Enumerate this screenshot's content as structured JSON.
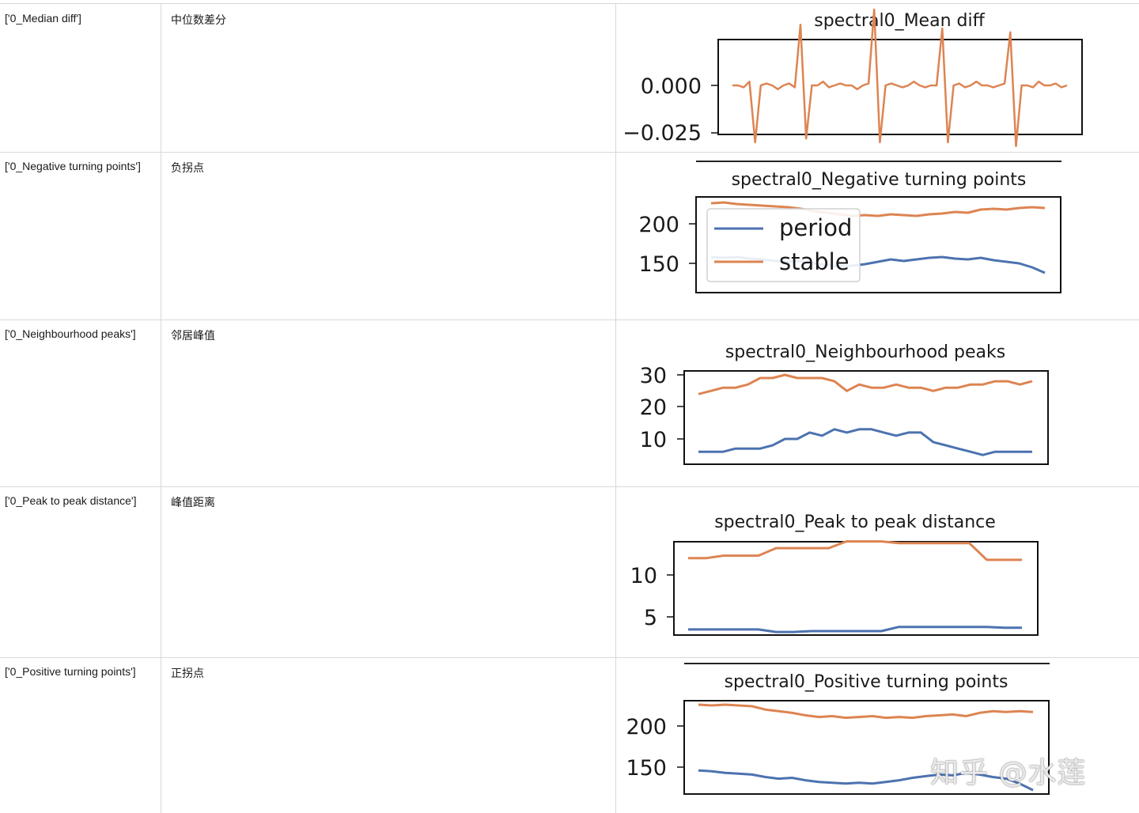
{
  "colors": {
    "period": "#4c72b0",
    "stable": "#dd8452",
    "grid_line": "#d8d8d8"
  },
  "rows": [
    {
      "feature": "['0_Median diff']",
      "chinese": "中位数差分"
    },
    {
      "feature": "['0_Negative turning points']",
      "chinese": "负拐点"
    },
    {
      "feature": "['0_Neighbourhood peaks']",
      "chinese": "邻居峰值"
    },
    {
      "feature": "['0_Peak to peak distance']",
      "chinese": "峰值距离"
    },
    {
      "feature": "['0_Positive turning points']",
      "chinese": "正拐点"
    }
  ],
  "watermark": "知乎 @水莲",
  "chart_data": [
    {
      "type": "line",
      "title": "spectral0_Mean diff",
      "yticks": [
        "0.000",
        "−0.025"
      ],
      "series": [
        {
          "key": "stable",
          "values": [
            0.0,
            0.0,
            -0.001,
            0.002,
            -0.03,
            0.0,
            0.001,
            0.0,
            -0.002,
            0.0,
            0.001,
            -0.001,
            0.032,
            -0.028,
            0.0,
            0.0,
            0.002,
            -0.001,
            0.0,
            0.001,
            0.0,
            0.0,
            -0.002,
            0.0,
            0.001,
            0.04,
            -0.03,
            0.0,
            0.001,
            0.0,
            -0.001,
            0.0,
            0.002,
            0.0,
            -0.001,
            0.0,
            0.0,
            0.03,
            -0.03,
            0.0,
            0.001,
            -0.001,
            0.0,
            0.002,
            0.0,
            0.0,
            -0.001,
            0.0,
            0.001,
            0.028,
            -0.032,
            0.0,
            0.0,
            -0.001,
            0.002,
            0.0,
            0.0,
            0.001,
            -0.001,
            0.0
          ]
        }
      ]
    },
    {
      "type": "line",
      "title": "spectral0_Negative turning points",
      "yticks": [
        "200",
        "150"
      ],
      "legend": [
        "period",
        "stable"
      ],
      "series": [
        {
          "key": "period",
          "values": [
            158,
            157,
            158,
            156,
            155,
            153,
            152,
            153,
            150,
            148,
            146,
            147,
            149,
            152,
            155,
            153,
            155,
            157,
            158,
            156,
            155,
            157,
            154,
            152,
            150,
            145,
            138
          ]
        },
        {
          "key": "stable",
          "values": [
            226,
            227,
            225,
            224,
            223,
            222,
            221,
            219,
            216,
            214,
            212,
            210,
            211,
            210,
            212,
            211,
            210,
            212,
            213,
            215,
            214,
            218,
            219,
            218,
            220,
            221,
            220
          ]
        }
      ]
    },
    {
      "type": "line",
      "title": "spectral0_Neighbourhood peaks",
      "yticks": [
        "30",
        "20",
        "10"
      ],
      "series": [
        {
          "key": "period",
          "values": [
            6,
            6,
            6,
            7,
            7,
            7,
            8,
            10,
            10,
            12,
            11,
            13,
            12,
            13,
            13,
            12,
            11,
            12,
            12,
            9,
            8,
            7,
            6,
            5,
            6,
            6,
            6,
            6
          ]
        },
        {
          "key": "stable",
          "values": [
            24,
            25,
            26,
            26,
            27,
            29,
            29,
            30,
            29,
            29,
            29,
            28,
            25,
            27,
            26,
            26,
            27,
            26,
            26,
            25,
            26,
            26,
            27,
            27,
            28,
            28,
            27,
            28
          ]
        }
      ]
    },
    {
      "type": "line",
      "title": "spectral0_Peak to peak distance",
      "yticks": [
        "10",
        "5"
      ],
      "series": [
        {
          "key": "period",
          "values": [
            3.5,
            3.5,
            3.5,
            3.5,
            3.5,
            3.2,
            3.2,
            3.3,
            3.3,
            3.3,
            3.3,
            3.3,
            3.8,
            3.8,
            3.8,
            3.8,
            3.8,
            3.8,
            3.7,
            3.7
          ]
        },
        {
          "key": "stable",
          "values": [
            12.0,
            12.0,
            12.3,
            12.3,
            12.3,
            13.2,
            13.2,
            13.2,
            13.2,
            14.0,
            14.0,
            14.0,
            13.8,
            13.8,
            13.8,
            13.8,
            13.8,
            11.8,
            11.8,
            11.8
          ]
        }
      ]
    },
    {
      "type": "line",
      "title": "spectral0_Positive turning points",
      "yticks": [
        "200",
        "150"
      ],
      "series": [
        {
          "key": "period",
          "values": [
            146,
            145,
            143,
            142,
            141,
            138,
            136,
            137,
            134,
            132,
            131,
            130,
            131,
            130,
            132,
            134,
            137,
            139,
            141,
            140,
            143,
            141,
            138,
            136,
            130,
            122
          ]
        },
        {
          "key": "stable",
          "values": [
            226,
            225,
            226,
            225,
            224,
            220,
            218,
            216,
            213,
            211,
            212,
            210,
            211,
            212,
            210,
            211,
            210,
            212,
            213,
            214,
            212,
            216,
            218,
            217,
            218,
            217
          ]
        }
      ]
    }
  ]
}
